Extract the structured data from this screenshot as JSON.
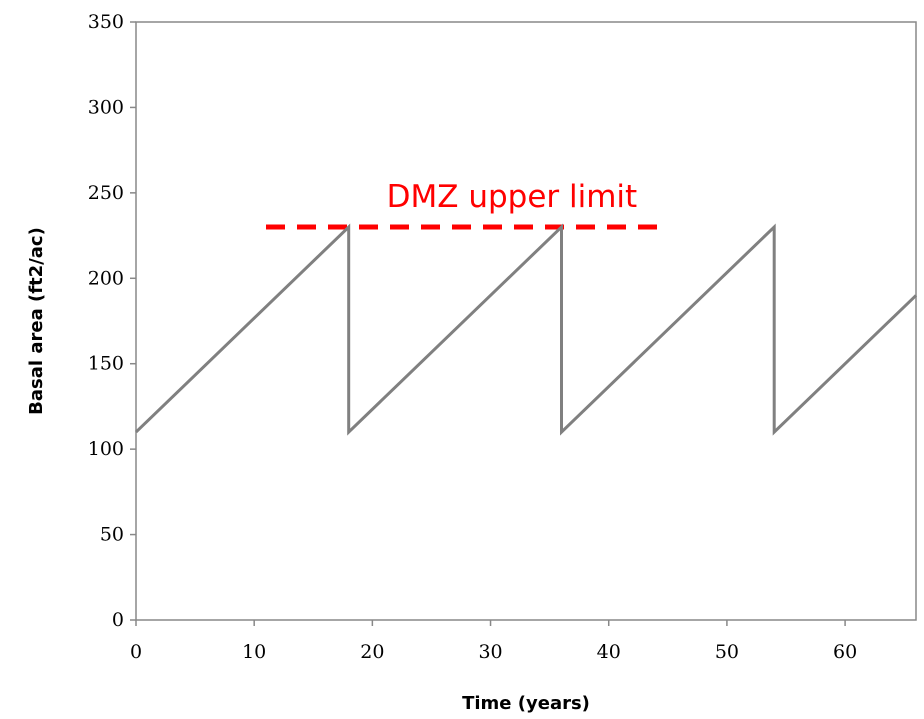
{
  "chart_data": {
    "type": "line",
    "title": "",
    "xlabel": "Time (years)",
    "ylabel": "Basal area (ft2/ac)",
    "xlim": [
      0,
      66
    ],
    "ylim": [
      0,
      350
    ],
    "xticks": [
      0,
      10,
      20,
      30,
      40,
      50,
      60
    ],
    "yticks": [
      0,
      50,
      100,
      150,
      200,
      250,
      300,
      350
    ],
    "grid": false,
    "series": [
      {
        "color": "#808080",
        "x": [
          0,
          18,
          18,
          36,
          36,
          54,
          54,
          66
        ],
        "y": [
          110,
          230,
          110,
          230,
          110,
          230,
          110,
          190
        ]
      }
    ],
    "reference_lines": [
      {
        "label": "DMZ upper limit",
        "y": 230,
        "x_range": [
          11,
          45
        ],
        "color": "#ff0000",
        "style": "dashed"
      }
    ]
  }
}
